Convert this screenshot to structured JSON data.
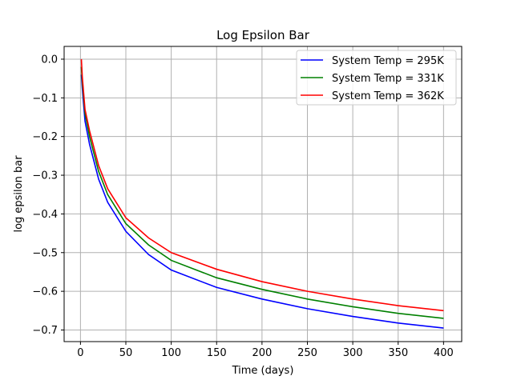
{
  "chart_data": {
    "type": "line",
    "title": "Log Epsilon Bar",
    "xlabel": "Time (days)",
    "ylabel": "log epsilon bar",
    "xlim": [
      -18,
      420
    ],
    "ylim": [
      -0.73,
      0.033
    ],
    "xticks": [
      0,
      50,
      100,
      150,
      200,
      250,
      300,
      350,
      400
    ],
    "yticks": [
      0.0,
      -0.1,
      -0.2,
      -0.3,
      -0.4,
      -0.5,
      -0.6,
      -0.7
    ],
    "ytick_labels": [
      "0.0",
      "−0.1",
      "−0.2",
      "−0.3",
      "−0.4",
      "−0.5",
      "−0.6",
      "−0.7"
    ],
    "grid": true,
    "legend_position": "upper-right",
    "x": [
      1,
      2,
      5,
      10,
      20,
      30,
      50,
      75,
      100,
      150,
      200,
      250,
      300,
      350,
      400
    ],
    "series": [
      {
        "name": "System Temp = 295K",
        "color": "#0000ff",
        "values": [
          -0.04,
          -0.075,
          -0.16,
          -0.22,
          -0.31,
          -0.37,
          -0.445,
          -0.505,
          -0.545,
          -0.59,
          -0.62,
          -0.645,
          -0.665,
          -0.682,
          -0.695
        ]
      },
      {
        "name": "System Temp = 331K",
        "color": "#008000",
        "values": [
          -0.02,
          -0.06,
          -0.14,
          -0.2,
          -0.29,
          -0.35,
          -0.425,
          -0.48,
          -0.52,
          -0.565,
          -0.595,
          -0.62,
          -0.64,
          -0.657,
          -0.67
        ]
      },
      {
        "name": "System Temp = 362K",
        "color": "#ff0000",
        "values": [
          0.0,
          -0.045,
          -0.13,
          -0.185,
          -0.275,
          -0.335,
          -0.41,
          -0.462,
          -0.5,
          -0.543,
          -0.575,
          -0.6,
          -0.62,
          -0.637,
          -0.65
        ]
      }
    ]
  }
}
